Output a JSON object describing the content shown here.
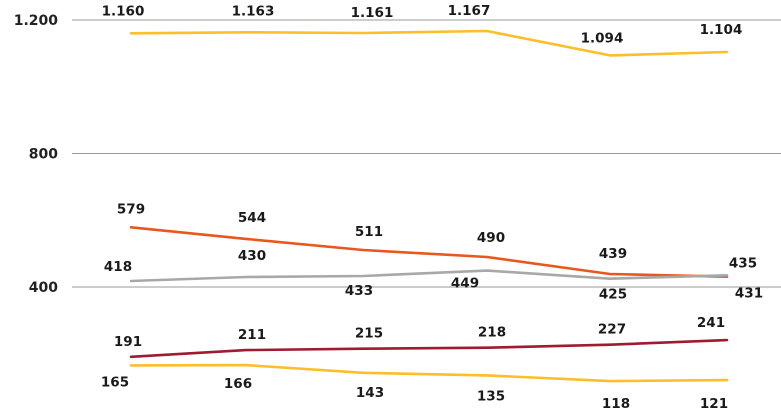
{
  "chart_data": {
    "type": "line",
    "y_ticks": [
      {
        "value": 400,
        "label": "400"
      },
      {
        "value": 800,
        "label": "800"
      },
      {
        "value": 1200,
        "label": "1.200"
      }
    ],
    "ylim": [
      0,
      1200
    ],
    "grid": true,
    "series": [
      {
        "key": "yellow_top",
        "color": "#FDBE2A",
        "values": [
          1160,
          1163,
          1161,
          1167,
          1094,
          1104
        ],
        "labels": [
          "1.160",
          "1.163",
          "1.161",
          "1.167",
          "1.094",
          "1.104"
        ]
      },
      {
        "key": "orange",
        "color": "#E8581C",
        "values": [
          579,
          544,
          511,
          490,
          439,
          431
        ],
        "labels": [
          "579",
          "544",
          "511",
          "490",
          "439",
          "431"
        ]
      },
      {
        "key": "gray",
        "color": "#A8A8A8",
        "values": [
          418,
          430,
          433,
          449,
          425,
          435
        ],
        "labels": [
          "418",
          "430",
          "433",
          "449",
          "425",
          "435"
        ]
      },
      {
        "key": "maroon",
        "color": "#9E1B32",
        "values": [
          191,
          211,
          215,
          218,
          227,
          241
        ],
        "labels": [
          "191",
          "211",
          "215",
          "218",
          "227",
          "241"
        ]
      },
      {
        "key": "yellow_bottom",
        "color": "#FDBE2A",
        "values": [
          165,
          166,
          143,
          135,
          118,
          121
        ],
        "labels": [
          "165",
          "166",
          "143",
          "135",
          "118",
          "121"
        ]
      }
    ]
  }
}
